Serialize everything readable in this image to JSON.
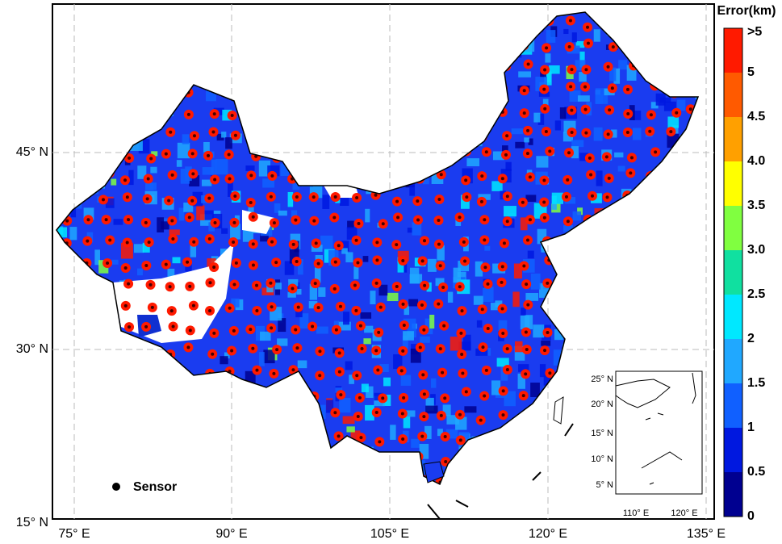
{
  "map": {
    "legend_title": "Error(km)",
    "colorbar": {
      "labels": [
        ">5",
        "5",
        "4.5",
        "4.0",
        "3.5",
        "3.0",
        "2.5",
        "2",
        "1.5",
        "1",
        "0.5",
        "0"
      ],
      "colors": [
        "#ff1a00",
        "#ff5a00",
        "#ffa000",
        "#ffff00",
        "#80ff40",
        "#10e0a0",
        "#00e8ff",
        "#20a8ff",
        "#1060ff",
        "#0018e0",
        "#000090"
      ]
    },
    "lat_ticks": [
      "45° N",
      "30° N",
      "15° N"
    ],
    "lon_ticks": [
      "75° E",
      "90° E",
      "105° E",
      "120° E",
      "135° E"
    ],
    "marker_legend": "Sensor",
    "inset": {
      "lat_ticks": [
        "25° N",
        "20° N",
        "15° N",
        "10° N",
        "5° N"
      ],
      "lon_ticks": [
        "110° E",
        "120° E"
      ]
    }
  }
}
